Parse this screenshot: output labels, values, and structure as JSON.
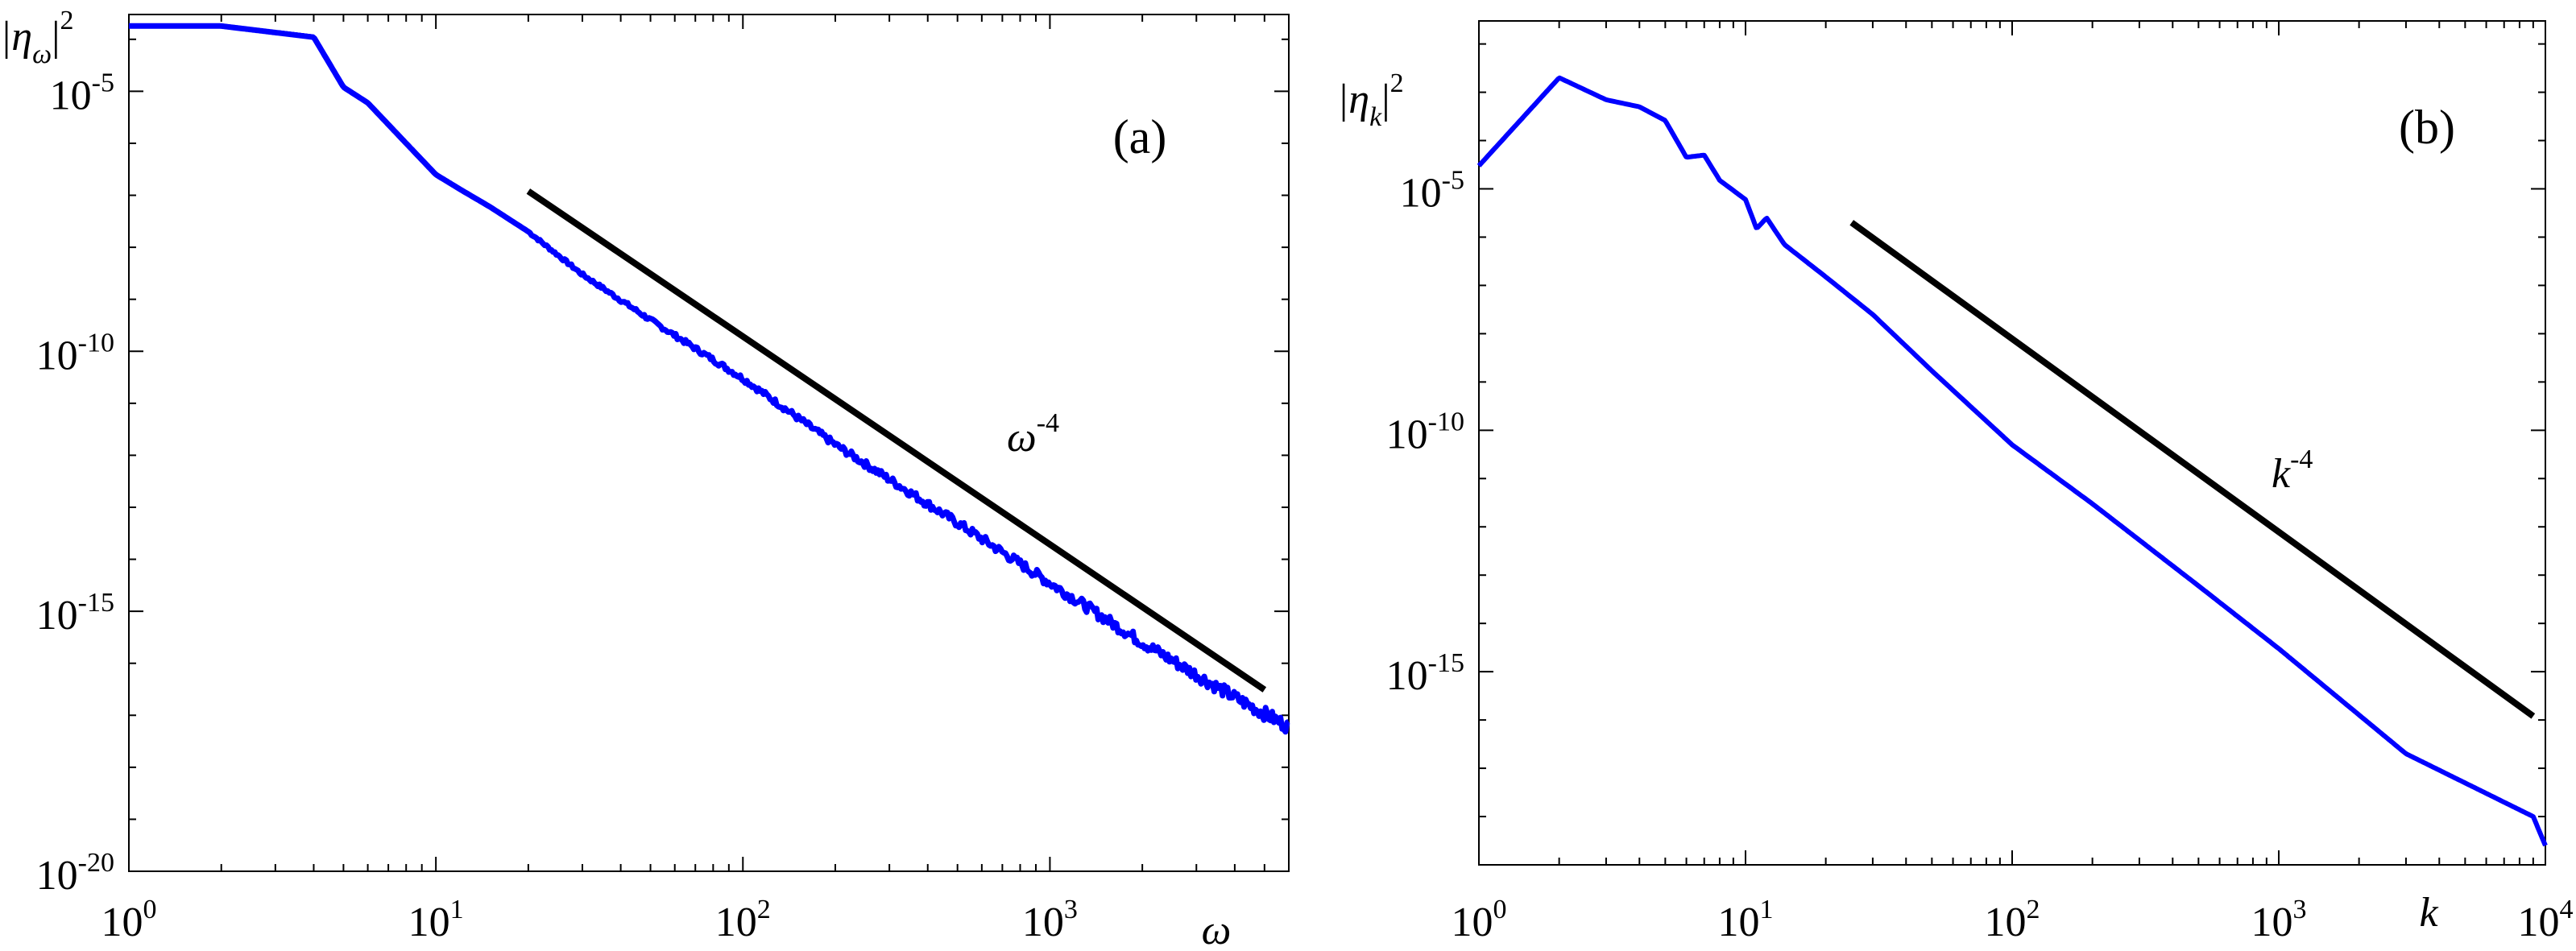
{
  "chart_data": [
    {
      "type": "line",
      "panel_label": "(a)",
      "ylabel": {
        "base": "|η",
        "sub": "ω",
        "close": "|",
        "sup": "2"
      },
      "xlabel": "ω",
      "xscale": "log",
      "yscale": "log",
      "xlim": [
        1,
        6000
      ],
      "ylim": [
        1e-20,
        0.0003
      ],
      "x_ticks": [
        {
          "value": 1,
          "base": "10",
          "exp": "0"
        },
        {
          "value": 10,
          "base": "10",
          "exp": "1"
        },
        {
          "value": 100,
          "base": "10",
          "exp": "2"
        },
        {
          "value": 1000,
          "base": "10",
          "exp": "3"
        }
      ],
      "y_ticks": [
        {
          "value": 1e-05,
          "base": "10",
          "exp": "-5"
        },
        {
          "value": 1e-10,
          "base": "10",
          "exp": "-10"
        },
        {
          "value": 1e-15,
          "base": "10",
          "exp": "-15"
        },
        {
          "value": 1e-20,
          "base": "10",
          "exp": "-20"
        }
      ],
      "grid": false,
      "series": [
        {
          "color": "#0000ff",
          "noisy": true,
          "x": [
            1,
            2,
            4,
            5,
            6,
            8,
            10,
            12,
            15,
            20,
            30,
            50,
            100,
            200,
            500,
            1000,
            2000,
            4000,
            6000
          ],
          "y": [
            0.00018,
            0.00018,
            0.00011,
            1.2e-05,
            6e-06,
            1e-06,
            2.5e-07,
            1.3e-07,
            6e-08,
            2e-08,
            3e-09,
            4e-10,
            3e-11,
            1.6e-12,
            5e-14,
            3.5e-15,
            2.5e-16,
            2.2e-17,
            6e-18
          ]
        }
      ],
      "reference_line": {
        "label_base": "ω",
        "label_exp": "-4",
        "x": [
          20,
          5000
        ],
        "y": [
          1.2e-07,
          3.1e-17
        ]
      }
    },
    {
      "type": "line",
      "panel_label": "(b)",
      "ylabel": {
        "base": "|η",
        "sub": "k",
        "close": "|",
        "sup": "2"
      },
      "xlabel": "k",
      "xscale": "log",
      "yscale": "log",
      "xlim": [
        1,
        10000
      ],
      "ylim": [
        1e-19,
        0.03
      ],
      "x_ticks": [
        {
          "value": 1,
          "base": "10",
          "exp": "0"
        },
        {
          "value": 10,
          "base": "10",
          "exp": "1"
        },
        {
          "value": 100,
          "base": "10",
          "exp": "2"
        },
        {
          "value": 1000,
          "base": "10",
          "exp": "3"
        },
        {
          "value": 10000,
          "base": "10",
          "exp": "4"
        }
      ],
      "y_ticks": [
        {
          "value": 1e-05,
          "base": "10",
          "exp": "-5"
        },
        {
          "value": 1e-10,
          "base": "10",
          "exp": "-10"
        },
        {
          "value": 1e-15,
          "base": "10",
          "exp": "-15"
        }
      ],
      "grid": false,
      "series": [
        {
          "color": "#0000ff",
          "noisy": false,
          "x": [
            1,
            2,
            3,
            4,
            5,
            6,
            7,
            8,
            10,
            11,
            12,
            14,
            20,
            30,
            50,
            100,
            200,
            500,
            1000,
            3000,
            9000,
            10000
          ],
          "y": [
            3e-05,
            0.002,
            0.0007,
            0.0005,
            0.00026,
            4.5e-05,
            5e-05,
            1.5e-05,
            6e-06,
            1.5e-06,
            2.5e-06,
            7e-07,
            1.5e-07,
            2.5e-08,
            1.7e-09,
            5e-11,
            3e-12,
            6e-14,
            3e-15,
            2e-17,
            1e-18,
            2.5e-19
          ]
        }
      ],
      "reference_line": {
        "label_base": "k",
        "label_exp": "-4",
        "x": [
          25,
          9000
        ],
        "y": [
          2e-06,
          1.2e-16
        ]
      }
    }
  ]
}
